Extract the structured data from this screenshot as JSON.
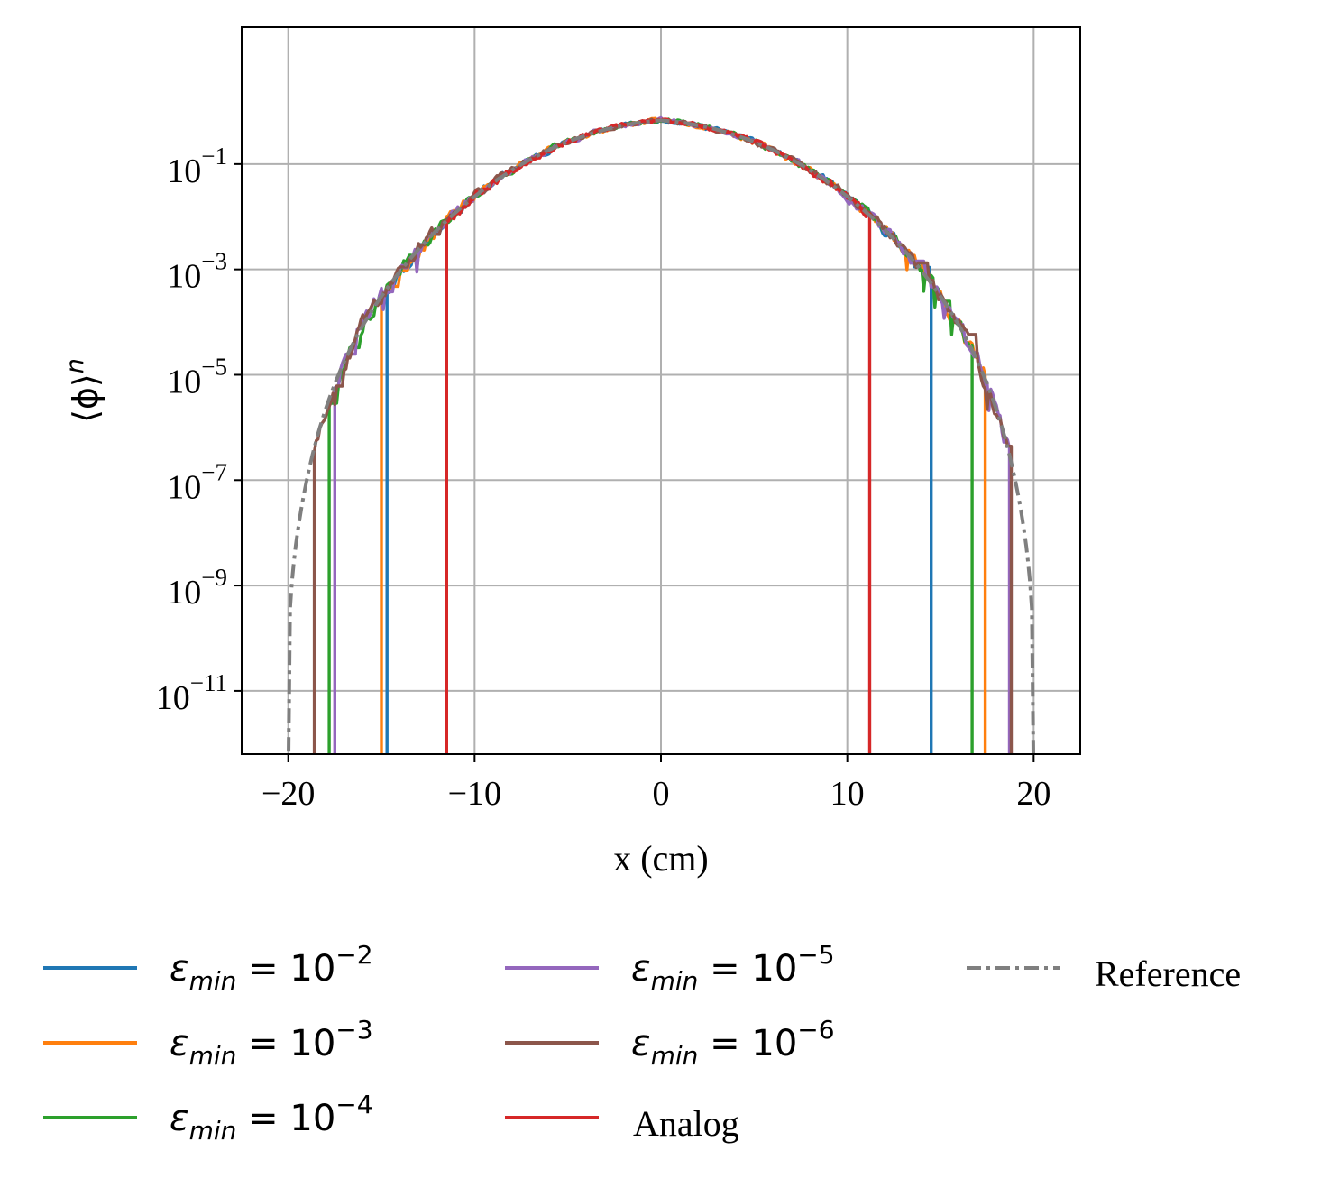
{
  "chart_data": {
    "type": "line",
    "title": "",
    "xlabel": "x (cm)",
    "ylabel_base": "⟨ϕ⟩",
    "ylabel_sup": "n",
    "xlim": [
      -22.5,
      22.5
    ],
    "ylim_log10": [
      -12.2,
      1.6
    ],
    "yscale": "log",
    "grid": true,
    "x_ticks": [
      -20,
      -10,
      0,
      10,
      20
    ],
    "x_tick_labels": [
      "−20",
      "−10",
      "0",
      "10",
      "20"
    ],
    "y_ticks_log10": [
      -1,
      -3,
      -5,
      -7,
      -9,
      -11
    ],
    "y_tick_base": "10",
    "y_tick_exps": [
      "−1",
      "−3",
      "−5",
      "−7",
      "−9",
      "−11"
    ],
    "legend_position": "below",
    "reference_extent": [
      -20,
      20
    ],
    "series": [
      {
        "name": "ε_min = 10^-2",
        "label_sym": "ε",
        "label_sub": "min",
        "label_eq": " = 10",
        "label_sup": "−2",
        "color": "#1f77b4",
        "style": "solid",
        "cutoff": [
          -14.7,
          14.5
        ],
        "seed": 11
      },
      {
        "name": "ε_min = 10^-3",
        "label_sym": "ε",
        "label_sub": "min",
        "label_eq": " = 10",
        "label_sup": "−3",
        "color": "#ff7f0e",
        "style": "solid",
        "cutoff": [
          -15.0,
          17.4
        ],
        "seed": 23
      },
      {
        "name": "ε_min = 10^-4",
        "label_sym": "ε",
        "label_sub": "min",
        "label_eq": " = 10",
        "label_sup": "−4",
        "color": "#2ca02c",
        "style": "solid",
        "cutoff": [
          -17.8,
          16.7
        ],
        "seed": 37
      },
      {
        "name": "ε_min = 10^-5",
        "label_sym": "ε",
        "label_sub": "min",
        "label_eq": " = 10",
        "label_sup": "−5",
        "color": "#9467bd",
        "style": "solid",
        "cutoff": [
          -17.5,
          18.7
        ],
        "seed": 41
      },
      {
        "name": "ε_min = 10^-6",
        "label_sym": "ε",
        "label_sub": "min",
        "label_eq": " = 10",
        "label_sup": "−6",
        "color": "#8c564b",
        "style": "solid",
        "cutoff": [
          -18.6,
          18.8
        ],
        "seed": 53
      },
      {
        "name": "Analog",
        "label_text": "Analog",
        "color": "#d62728",
        "style": "solid",
        "cutoff": [
          -11.5,
          11.2
        ],
        "seed": 67
      },
      {
        "name": "Reference",
        "label_text": "Reference",
        "color": "#7f7f7f",
        "style": "dashdot",
        "cutoff": [
          -20,
          20
        ],
        "seed": 0
      }
    ]
  }
}
